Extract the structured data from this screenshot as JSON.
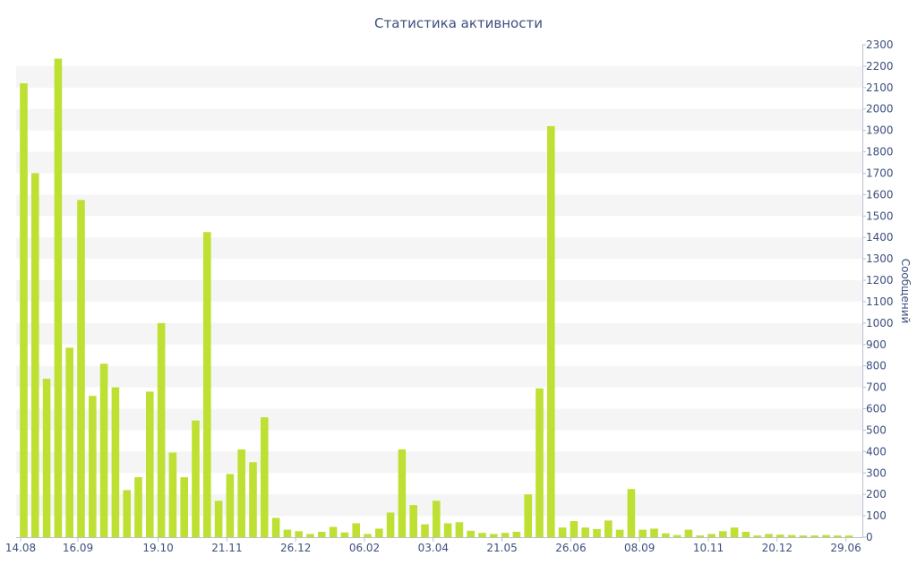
{
  "chart_data": {
    "type": "bar",
    "title": "Статистика активности",
    "xlabel": "",
    "ylabel": "Сообщений",
    "ylim": [
      0,
      2300
    ],
    "y_axis_position": "right",
    "y_ticks": [
      0,
      100,
      200,
      300,
      400,
      500,
      600,
      700,
      800,
      900,
      1000,
      1100,
      1200,
      1300,
      1400,
      1500,
      1600,
      1700,
      1800,
      1900,
      2000,
      2100,
      2200,
      2300
    ],
    "x_tick_labels": [
      {
        "label": "14.08",
        "index": 0
      },
      {
        "label": "16.09",
        "index": 5
      },
      {
        "label": "19.10",
        "index": 12
      },
      {
        "label": "21.11",
        "index": 18
      },
      {
        "label": "26.12",
        "index": 24
      },
      {
        "label": "06.02",
        "index": 30
      },
      {
        "label": "03.04",
        "index": 36
      },
      {
        "label": "21.05",
        "index": 42
      },
      {
        "label": "26.06",
        "index": 48
      },
      {
        "label": "08.09",
        "index": 54
      },
      {
        "label": "10.11",
        "index": 60
      },
      {
        "label": "20.12",
        "index": 66
      },
      {
        "label": "29.06",
        "index": 72
      }
    ],
    "bar_color": "#bde033",
    "band_color": "#f5f5f5",
    "values": [
      2120,
      1700,
      740,
      2235,
      885,
      1575,
      660,
      810,
      700,
      220,
      280,
      680,
      1000,
      395,
      280,
      545,
      1425,
      170,
      295,
      410,
      350,
      560,
      90,
      35,
      28,
      15,
      25,
      48,
      22,
      65,
      15,
      40,
      115,
      410,
      150,
      60,
      170,
      65,
      70,
      30,
      20,
      15,
      20,
      25,
      200,
      695,
      1920,
      45,
      75,
      45,
      38,
      78,
      35,
      225,
      35,
      40,
      18,
      10,
      35,
      8,
      15,
      28,
      45,
      25,
      8,
      15,
      12,
      10,
      8,
      8,
      10,
      8,
      8
    ]
  }
}
